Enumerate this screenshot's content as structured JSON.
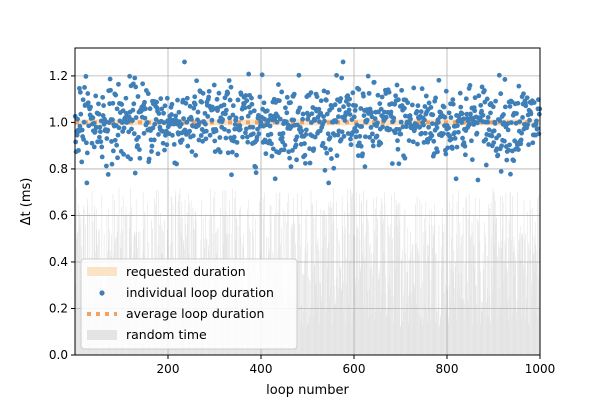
{
  "chart_data": {
    "type": "scatter",
    "xlabel": "loop number",
    "ylabel": "Δt (ms)",
    "xlim": [
      0,
      1000
    ],
    "ylim": [
      0.0,
      1.32
    ],
    "xticks": [
      200,
      400,
      600,
      800,
      1000
    ],
    "yticks": [
      0.0,
      0.2,
      0.4,
      0.6,
      0.8,
      1.0,
      1.2
    ],
    "xtick_labels": [
      "200",
      "400",
      "600",
      "800",
      "1000"
    ],
    "ytick_labels": [
      "0.0",
      "0.2",
      "0.4",
      "0.6",
      "0.8",
      "1.0",
      "1.2"
    ],
    "grid": true,
    "legend_position": "lower-left",
    "series": [
      {
        "name": "requested duration",
        "kind": "line",
        "y": 1.0,
        "color": "#fbe3c6"
      },
      {
        "name": "individual loop duration",
        "kind": "scatter",
        "n_points": 1000,
        "mean": 1.0,
        "range": [
          0.74,
          1.26
        ],
        "color": "#3f7fb8"
      },
      {
        "name": "average loop duration",
        "kind": "dotted-line",
        "y": 1.0,
        "color": "#f4a261"
      },
      {
        "name": "random time",
        "kind": "bar",
        "n_points": 1000,
        "range": [
          0.12,
          0.72
        ],
        "color": "#e4e4e4"
      }
    ]
  }
}
